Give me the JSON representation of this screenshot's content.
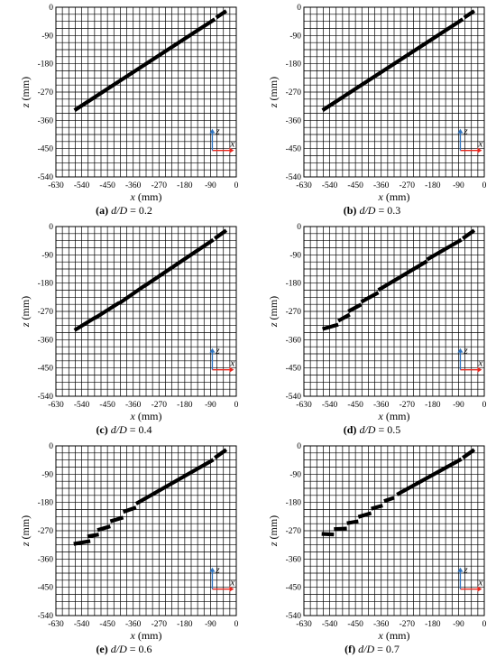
{
  "axes": {
    "xlabel_var": "x",
    "xlabel_unit": " (mm)",
    "ylabel_var": "z",
    "ylabel_unit": " (mm)",
    "triad_x": "x",
    "triad_z": "z",
    "triad_x_color": "#e8261d",
    "triad_z_color": "#2f74c0"
  },
  "chart_data": [
    {
      "type": "line",
      "id": "a",
      "caption_letter": "(a)",
      "caption_param": "d/D",
      "caption_eq": " = 0.2",
      "xlim": [
        -630,
        0
      ],
      "ylim": [
        -540,
        0
      ],
      "xticks": [
        -630,
        -540,
        -450,
        -360,
        -270,
        -180,
        -90,
        0
      ],
      "yticks": [
        0,
        -90,
        -180,
        -270,
        -360,
        -450,
        -540
      ],
      "grid": true,
      "segments": [
        [
          [
            -565,
            -328
          ],
          [
            -75,
            -38
          ]
        ],
        [
          [
            -70,
            -33
          ],
          [
            -35,
            -12
          ]
        ]
      ]
    },
    {
      "type": "line",
      "id": "b",
      "caption_letter": "(b)",
      "caption_param": "d/D",
      "caption_eq": " = 0.3",
      "xlim": [
        -630,
        0
      ],
      "ylim": [
        -540,
        0
      ],
      "xticks": [
        -630,
        -540,
        -450,
        -360,
        -270,
        -180,
        -90,
        0
      ],
      "yticks": [
        0,
        -90,
        -180,
        -270,
        -360,
        -450,
        -540
      ],
      "grid": true,
      "segments": [
        [
          [
            -565,
            -328
          ],
          [
            -75,
            -38
          ]
        ],
        [
          [
            -70,
            -33
          ],
          [
            -35,
            -12
          ]
        ]
      ]
    },
    {
      "type": "line",
      "id": "c",
      "caption_letter": "(c)",
      "caption_param": "d/D",
      "caption_eq": " = 0.4",
      "xlim": [
        -630,
        0
      ],
      "ylim": [
        -540,
        0
      ],
      "xticks": [
        -630,
        -540,
        -450,
        -360,
        -270,
        -180,
        -90,
        0
      ],
      "yticks": [
        0,
        -90,
        -180,
        -270,
        -360,
        -450,
        -540
      ],
      "grid": true,
      "segments": [
        [
          [
            -565,
            -330
          ],
          [
            -490,
            -288
          ]
        ],
        [
          [
            -495,
            -292
          ],
          [
            -408,
            -242
          ]
        ],
        [
          [
            -410,
            -245
          ],
          [
            -320,
            -188
          ]
        ],
        [
          [
            -322,
            -190
          ],
          [
            -80,
            -42
          ]
        ],
        [
          [
            -75,
            -38
          ],
          [
            -35,
            -12
          ]
        ]
      ]
    },
    {
      "type": "line",
      "id": "d",
      "caption_letter": "(d)",
      "caption_param": "d/D",
      "caption_eq": " = 0.5",
      "xlim": [
        -630,
        0
      ],
      "ylim": [
        -540,
        0
      ],
      "xticks": [
        -630,
        -540,
        -450,
        -360,
        -270,
        -180,
        -90,
        0
      ],
      "yticks": [
        0,
        -90,
        -180,
        -270,
        -360,
        -450,
        -540
      ],
      "grid": true,
      "segments": [
        [
          [
            -565,
            -326
          ],
          [
            -510,
            -312
          ]
        ],
        [
          [
            -510,
            -300
          ],
          [
            -470,
            -280
          ]
        ],
        [
          [
            -475,
            -270
          ],
          [
            -430,
            -248
          ]
        ],
        [
          [
            -430,
            -240
          ],
          [
            -370,
            -210
          ]
        ],
        [
          [
            -370,
            -202
          ],
          [
            -200,
            -110
          ]
        ],
        [
          [
            -200,
            -105
          ],
          [
            -80,
            -42
          ]
        ],
        [
          [
            -75,
            -38
          ],
          [
            -35,
            -12
          ]
        ]
      ]
    },
    {
      "type": "line",
      "id": "e",
      "caption_letter": "(e)",
      "caption_param": "d/D",
      "caption_eq": " = 0.6",
      "xlim": [
        -630,
        0
      ],
      "ylim": [
        -540,
        0
      ],
      "xticks": [
        -630,
        -540,
        -450,
        -360,
        -270,
        -180,
        -90,
        0
      ],
      "yticks": [
        0,
        -90,
        -180,
        -270,
        -360,
        -450,
        -540
      ],
      "grid": true,
      "segments": [
        [
          [
            -568,
            -312
          ],
          [
            -510,
            -303
          ]
        ],
        [
          [
            -520,
            -288
          ],
          [
            -480,
            -282
          ]
        ],
        [
          [
            -485,
            -268
          ],
          [
            -440,
            -256
          ]
        ],
        [
          [
            -440,
            -240
          ],
          [
            -395,
            -228
          ]
        ],
        [
          [
            -395,
            -210
          ],
          [
            -350,
            -196
          ]
        ],
        [
          [
            -350,
            -184
          ],
          [
            -80,
            -44
          ]
        ],
        [
          [
            -75,
            -38
          ],
          [
            -35,
            -12
          ]
        ]
      ]
    },
    {
      "type": "line",
      "id": "f",
      "caption_letter": "(f)",
      "caption_param": "d/D",
      "caption_eq": " = 0.7",
      "xlim": [
        -630,
        0
      ],
      "ylim": [
        -540,
        0
      ],
      "xticks": [
        -630,
        -540,
        -450,
        -360,
        -270,
        -180,
        -90,
        0
      ],
      "yticks": [
        0,
        -90,
        -180,
        -270,
        -360,
        -450,
        -540
      ],
      "grid": true,
      "segments": [
        [
          [
            -568,
            -280
          ],
          [
            -525,
            -282
          ]
        ],
        [
          [
            -525,
            -265
          ],
          [
            -480,
            -263
          ]
        ],
        [
          [
            -480,
            -246
          ],
          [
            -440,
            -240
          ]
        ],
        [
          [
            -440,
            -226
          ],
          [
            -395,
            -214
          ]
        ],
        [
          [
            -395,
            -200
          ],
          [
            -355,
            -190
          ]
        ],
        [
          [
            -350,
            -176
          ],
          [
            -315,
            -165
          ]
        ],
        [
          [
            -305,
            -155
          ],
          [
            -80,
            -42
          ]
        ],
        [
          [
            -75,
            -38
          ],
          [
            -35,
            -12
          ]
        ]
      ]
    }
  ]
}
